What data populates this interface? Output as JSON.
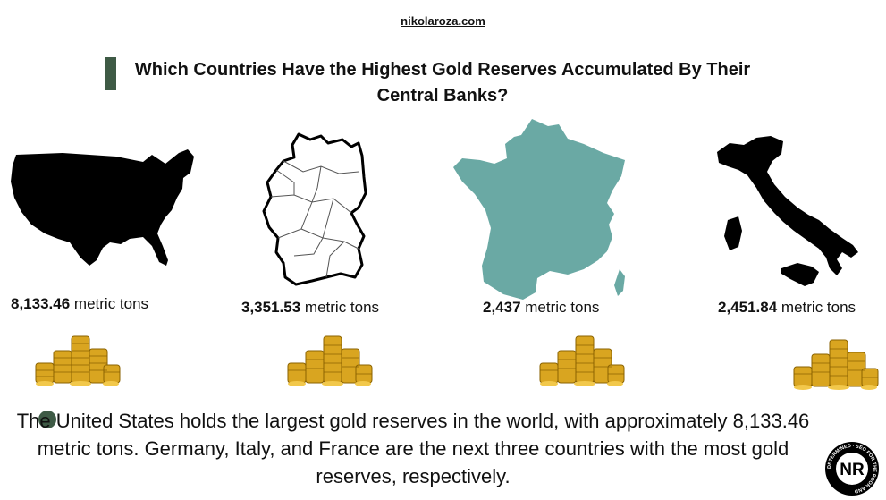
{
  "site": "nikolaroza.com",
  "title": "Which Countries Have the Highest Gold Reserves Accumulated By Their Central Banks?",
  "colors": {
    "accent": "#3e5a45",
    "france": "#6aa9a4",
    "gold": "#d9a520"
  },
  "countries": [
    {
      "map_icon": "usa-map-icon",
      "value": "8,133.46",
      "unit": " metric tons"
    },
    {
      "map_icon": "germany-map-icon",
      "value": "3,351.53",
      "unit": " metric tons"
    },
    {
      "map_icon": "france-map-icon",
      "value": "2,437",
      "unit": " metric tons"
    },
    {
      "map_icon": "italy-map-icon",
      "value": "2,451.84",
      "unit": " metric tons"
    }
  ],
  "note": "The United States holds the largest gold reserves in the world, with approximately 8,133.46 metric tons. Germany, Italy, and France are the next three countries with the most gold reserves, respectively.",
  "logo": {
    "letters": "NR",
    "ring_text": "DETERMINED · SEO FOR THE POOR AND"
  }
}
